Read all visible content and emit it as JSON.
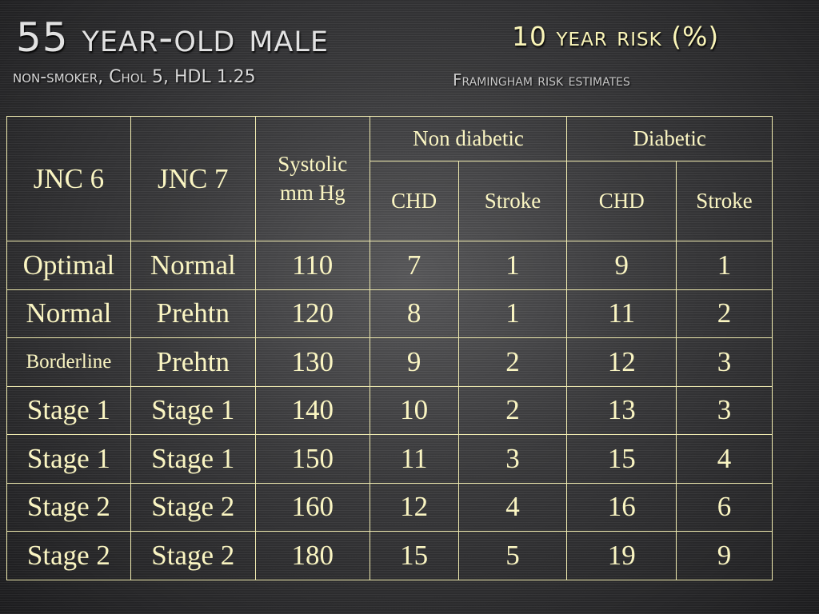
{
  "title": "55 year-old male",
  "risk_label": "10 year risk (%)",
  "subtitle": "non-smoker, Chol 5, HDL 1.25",
  "source": "Framingham risk estimates",
  "table": {
    "headers": {
      "jnc6": "JNC 6",
      "jnc7": "JNC 7",
      "systolic": "Systolic mm Hg",
      "non_diabetic": "Non diabetic",
      "diabetic": "Diabetic",
      "chd": "CHD",
      "stroke": "Stroke"
    },
    "rows": [
      [
        "Optimal",
        "Normal",
        "110",
        "7",
        "1",
        "9",
        "1"
      ],
      [
        "Normal",
        "Prehtn",
        "120",
        "8",
        "1",
        "11",
        "2"
      ],
      [
        "Borderline",
        "Prehtn",
        "130",
        "9",
        "2",
        "12",
        "3"
      ],
      [
        "Stage 1",
        "Stage 1",
        "140",
        "10",
        "2",
        "13",
        "3"
      ],
      [
        "Stage 1",
        "Stage 1",
        "150",
        "11",
        "3",
        "15",
        "4"
      ],
      [
        "Stage 2",
        "Stage 2",
        "160",
        "12",
        "4",
        "16",
        "6"
      ],
      [
        "Stage 2",
        "Stage 2",
        "180",
        "15",
        "5",
        "19",
        "9"
      ]
    ]
  }
}
